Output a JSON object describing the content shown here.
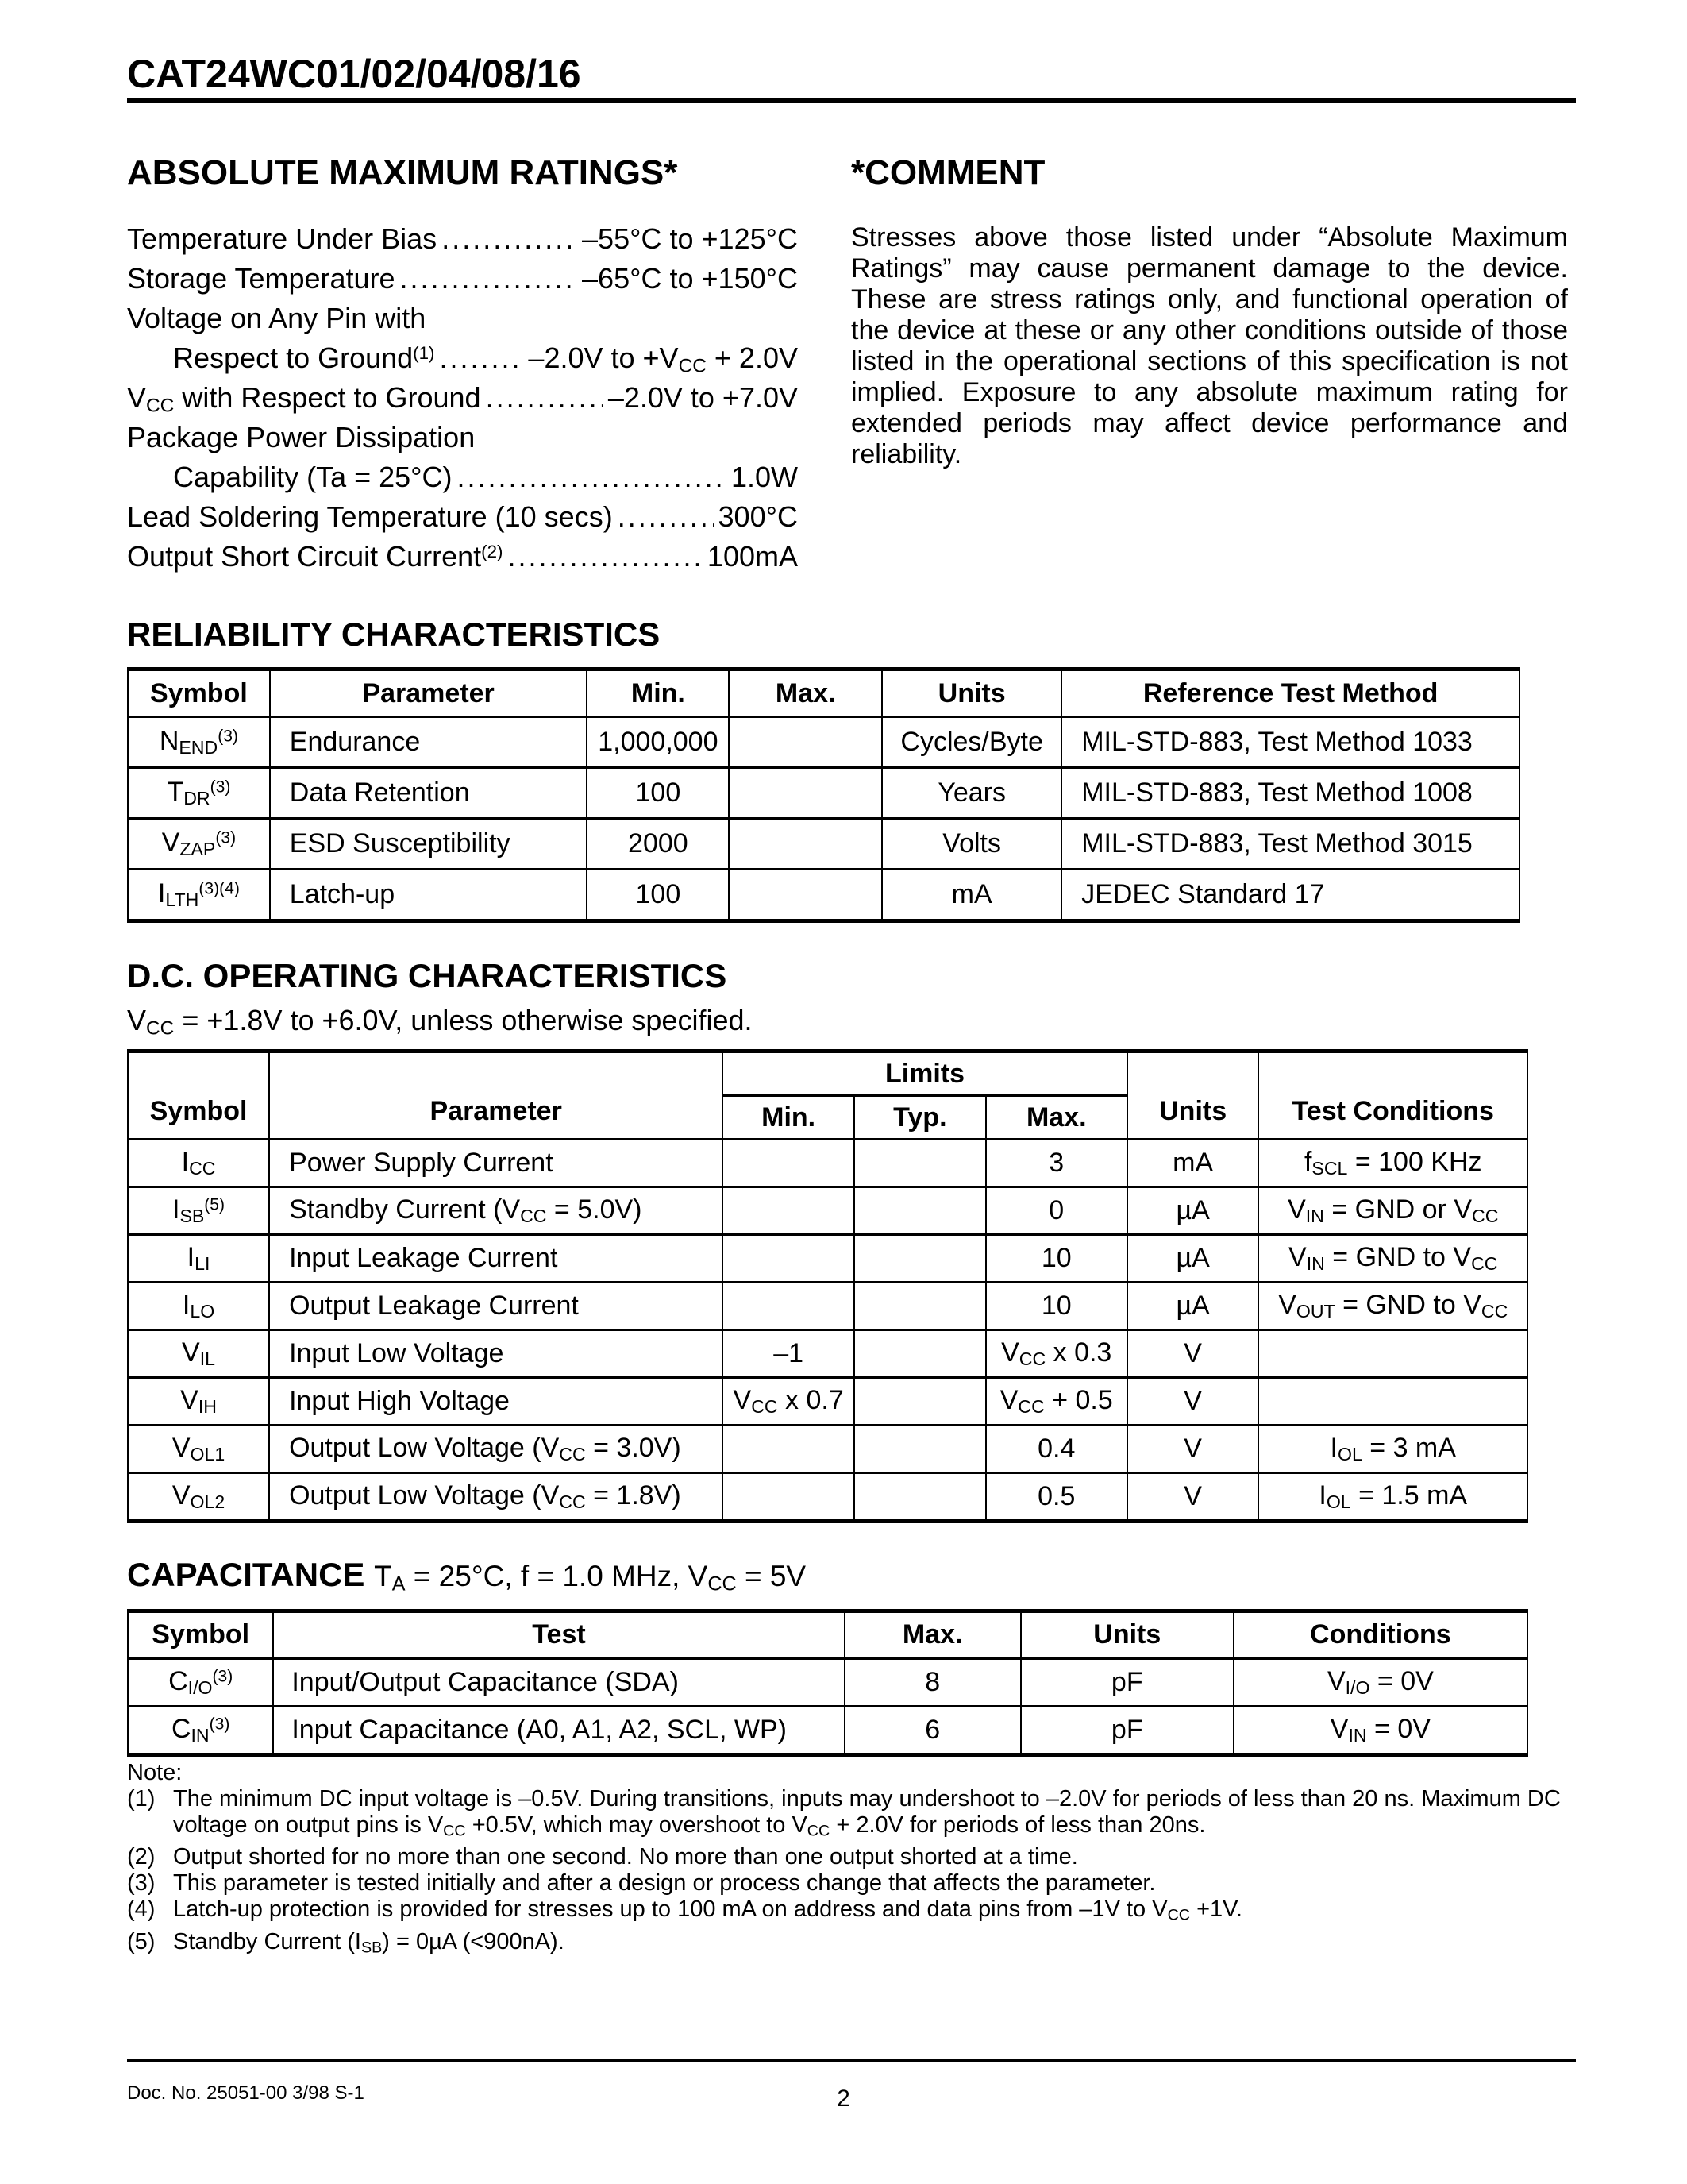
{
  "page": {
    "doc_title": "CAT24WC01/02/04/08/16",
    "footer_left": "Doc. No. 25051-00 3/98   S-1",
    "page_number": "2"
  },
  "abs_max": {
    "title": "ABSOLUTE MAXIMUM RATINGS*",
    "items": [
      {
        "label": "Temperature Under Bias",
        "value": "–55°C to +125°C"
      },
      {
        "label": "Storage Temperature",
        "value": "–65°C to +150°C"
      },
      {
        "label": "Voltage on Any Pin with"
      },
      {
        "label": "Respect to Ground^(1)^",
        "indent": true,
        "value": "–2.0V to +V~CC~ + 2.0V"
      },
      {
        "label": "V~CC~ with Respect to Ground",
        "value": "–2.0V to +7.0V"
      },
      {
        "label": "Package Power Dissipation"
      },
      {
        "label": "Capability (Ta = 25°C)",
        "indent": true,
        "value": "1.0W"
      },
      {
        "label": "Lead Soldering Temperature (10 secs)",
        "value": "300°C"
      },
      {
        "label": "Output Short Circuit Current^(2)^",
        "value": "100mA"
      }
    ]
  },
  "comment": {
    "title": "*COMMENT",
    "body": "Stresses above those listed under “Absolute Maximum Ratings” may cause permanent damage to the device. These are stress ratings only, and functional operation of the device at these or any other conditions outside of those listed in the operational sections of this specification is not implied. Exposure to any absolute maximum rating for extended periods may affect device performance and reliability."
  },
  "reliability": {
    "title": "RELIABILITY CHARACTERISTICS",
    "headers": [
      "Symbol",
      "Parameter",
      "Min.",
      "Max.",
      "Units",
      "Reference Test Method"
    ],
    "rows": [
      [
        "N~END~^(3)^",
        "Endurance",
        "1,000,000",
        "",
        "Cycles/Byte",
        "MIL-STD-883, Test Method 1033"
      ],
      [
        "T~DR~^(3)^",
        "Data Retention",
        "100",
        "",
        "Years",
        "MIL-STD-883, Test Method 1008"
      ],
      [
        "V~ZAP~^(3)^",
        "ESD Susceptibility",
        "2000",
        "",
        "Volts",
        "MIL-STD-883, Test Method 3015"
      ],
      [
        "I~LTH~^(3)(4)^",
        "Latch-up",
        "100",
        "",
        "mA",
        "JEDEC Standard 17"
      ]
    ]
  },
  "dc": {
    "title": "D.C. OPERATING CHARACTERISTICS",
    "condition": "V~CC~ = +1.8V to +6.0V, unless otherwise specified.",
    "limits_label": "Limits",
    "headers": {
      "symbol": "Symbol",
      "parameter": "Parameter",
      "min": "Min.",
      "typ": "Typ.",
      "max": "Max.",
      "units": "Units",
      "test_conditions": "Test Conditions"
    },
    "rows": [
      [
        "I~CC~",
        "Power Supply Current",
        "",
        "",
        "3",
        "mA",
        "f~SCL~ = 100 KHz"
      ],
      [
        "I~SB~^(5)^",
        "Standby Current (V~CC~ = 5.0V)",
        "",
        "",
        "0",
        "µA",
        "V~IN~ = GND or V~CC~"
      ],
      [
        "I~LI~",
        "Input Leakage Current",
        "",
        "",
        "10",
        "µA",
        "V~IN~ = GND to V~CC~"
      ],
      [
        "I~LO~",
        "Output Leakage Current",
        "",
        "",
        "10",
        "µA",
        "V~OUT~ = GND to V~CC~"
      ],
      [
        "V~IL~",
        "Input Low Voltage",
        "–1",
        "",
        "V~CC~ x 0.3",
        "V",
        ""
      ],
      [
        "V~IH~",
        "Input High Voltage",
        "V~CC~ x 0.7",
        "",
        "V~CC~ + 0.5",
        "V",
        ""
      ],
      [
        "V~OL1~",
        "Output Low Voltage (V~CC~ = 3.0V)",
        "",
        "",
        "0.4",
        "V",
        "I~OL~ = 3 mA"
      ],
      [
        "V~OL2~",
        "Output Low Voltage (V~CC~ = 1.8V)",
        "",
        "",
        "0.5",
        "V",
        "I~OL~ = 1.5 mA"
      ]
    ]
  },
  "capacitance": {
    "title": "CAPACITANCE",
    "condition": "T~A~ = 25°C, f = 1.0 MHz, V~CC~ = 5V",
    "headers": [
      "Symbol",
      "Test",
      "Max.",
      "Units",
      "Conditions"
    ],
    "rows": [
      [
        "C~I/O~^(3)^",
        "Input/Output Capacitance (SDA)",
        "8",
        "pF",
        "V~I/O~ = 0V"
      ],
      [
        "C~IN~^(3)^",
        "Input Capacitance (A0, A1, A2, SCL, WP)",
        "6",
        "pF",
        "V~IN~ = 0V"
      ]
    ]
  },
  "notes": {
    "title": "Note:",
    "items": [
      {
        "num": "(1)",
        "text": "The minimum DC input voltage is –0.5V. During transitions, inputs may undershoot to –2.0V for periods of less than 20 ns. Maximum DC voltage on output pins is V~CC~ +0.5V, which may overshoot to V~CC~ + 2.0V for periods of less than 20ns."
      },
      {
        "num": "(2)",
        "text": "Output shorted for no more than one second. No more than one output shorted at a time."
      },
      {
        "num": "(3)",
        "text": "This parameter is tested initially and after a design or process change that affects the parameter."
      },
      {
        "num": "(4)",
        "text": "Latch-up protection is provided for stresses up to 100 mA on address and data pins from –1V to V~CC~ +1V."
      },
      {
        "num": "(5)",
        "text": "Standby Current (I~SB~) = 0µA (<900nA)."
      }
    ]
  }
}
